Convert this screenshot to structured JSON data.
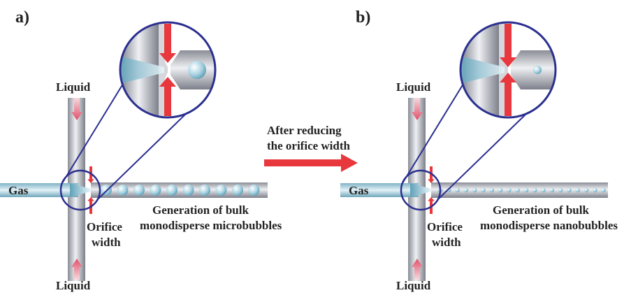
{
  "panels": [
    {
      "label": "a)",
      "liquid_top": "Liquid",
      "liquid_bottom": "Liquid",
      "gas": "Gas",
      "orifice": [
        "Orifice",
        "width"
      ],
      "generation": [
        "Generation of bulk",
        "monodisperse microbubbles"
      ]
    },
    {
      "label": "b)",
      "liquid_top": "Liquid",
      "liquid_bottom": "Liquid",
      "gas": "Gas",
      "orifice": [
        "Orifice",
        "width"
      ],
      "generation": [
        "Generation of bulk",
        "monodisperse nanobubbles"
      ]
    }
  ],
  "transition": [
    "After reducing",
    "the orifice width"
  ]
}
